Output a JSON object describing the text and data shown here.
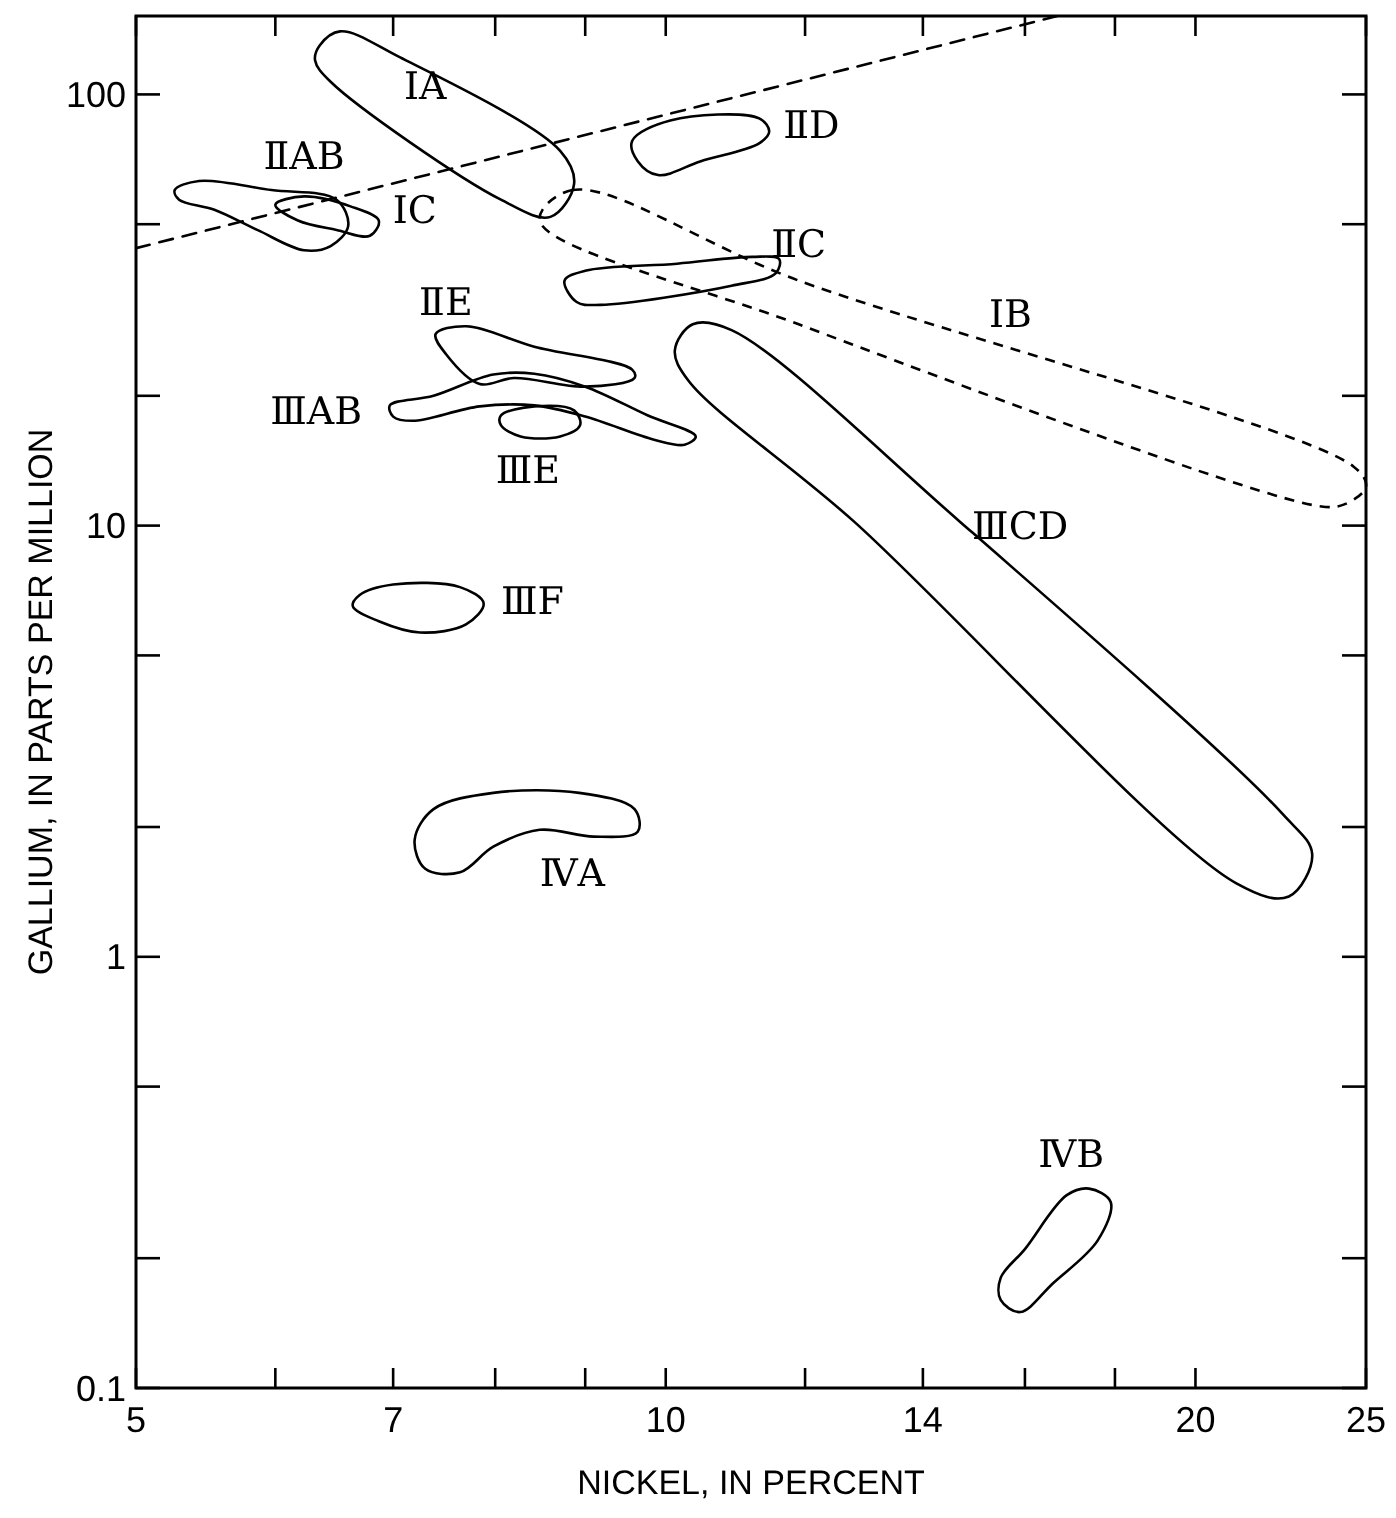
{
  "chart_data": {
    "type": "line",
    "xlabel": "NICKEL, IN PERCENT",
    "ylabel": "GALLIUM, IN PARTS PER MILLION",
    "log": "xy",
    "marker": "none",
    "xlim": [
      5,
      25
    ],
    "ylim": [
      0.1,
      152
    ],
    "xticks": [
      5,
      {
        "value": 6,
        "label": null
      },
      7,
      {
        "value": 8,
        "label": null
      },
      {
        "value": 9,
        "label": null
      },
      10,
      {
        "value": 12,
        "label": null
      },
      14,
      {
        "value": 16,
        "label": null
      },
      {
        "value": 18,
        "label": null
      },
      20,
      25
    ],
    "yticks": [
      0.1,
      {
        "value": 0.2,
        "label": null
      },
      {
        "value": 0.5,
        "label": null
      },
      1,
      {
        "value": 2,
        "label": null
      },
      {
        "value": 5,
        "label": null
      },
      10,
      {
        "value": 20,
        "label": null
      },
      {
        "value": 50,
        "label": null
      },
      100
    ],
    "series": [
      {
        "color": "#000000",
        "line_style": "dashed",
        "x": [
          5,
          16.7
        ],
        "values": [
          44,
          152
        ]
      }
    ],
    "annotations": [
      "ⅠA",
      "ⅡAB",
      "ⅠC",
      "ⅡD",
      "ⅡC",
      "ⅠB",
      "ⅡE",
      "ⅢAB",
      "ⅢE",
      "ⅢF",
      "ⅢCD",
      "ⅣA",
      "ⅣB"
    ]
  }
}
